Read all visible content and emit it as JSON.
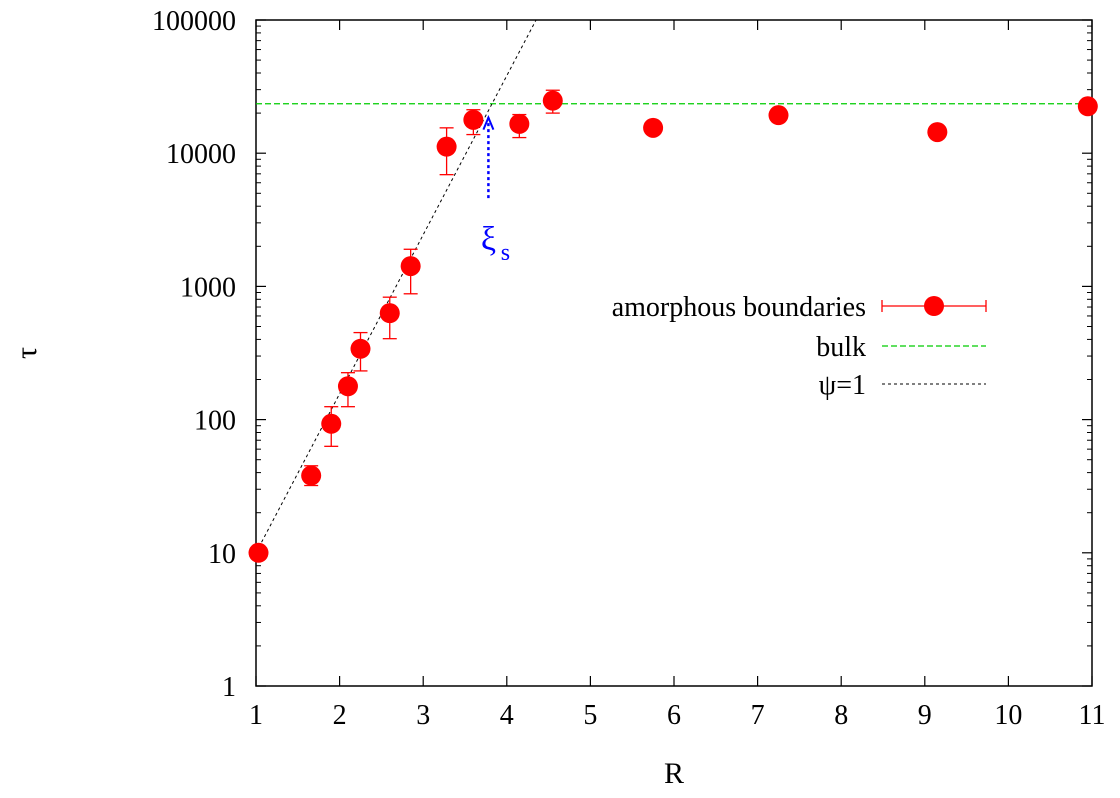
{
  "chart_data": {
    "type": "scatter",
    "xlabel": "R",
    "ylabel": "τ",
    "xlim": [
      1,
      11
    ],
    "ylim": [
      1,
      100000
    ],
    "yscale": "log",
    "grid": false,
    "legend_position": "right-middle",
    "x_ticks": [
      "1",
      "2",
      "3",
      "4",
      "5",
      "6",
      "7",
      "8",
      "9",
      "10",
      "11"
    ],
    "y_ticks": [
      "1",
      "10",
      "100",
      "1000",
      "10000",
      "100000"
    ],
    "series": [
      {
        "name": "amorphous boundaries",
        "type": "scatter-errorbar",
        "color": "#ff0000",
        "points": [
          {
            "x": 1.03,
            "y": 10,
            "ylo": 10,
            "yhi": 10
          },
          {
            "x": 1.66,
            "y": 38,
            "ylo": 32,
            "yhi": 45
          },
          {
            "x": 1.9,
            "y": 93,
            "ylo": 63,
            "yhi": 125
          },
          {
            "x": 2.1,
            "y": 178,
            "ylo": 125,
            "yhi": 225
          },
          {
            "x": 2.25,
            "y": 340,
            "ylo": 232,
            "yhi": 450
          },
          {
            "x": 2.6,
            "y": 630,
            "ylo": 405,
            "yhi": 830
          },
          {
            "x": 2.85,
            "y": 1420,
            "ylo": 880,
            "yhi": 1900
          },
          {
            "x": 3.28,
            "y": 11200,
            "ylo": 6900,
            "yhi": 15500
          },
          {
            "x": 3.6,
            "y": 17800,
            "ylo": 13800,
            "yhi": 21200
          },
          {
            "x": 4.15,
            "y": 16600,
            "ylo": 13100,
            "yhi": 19500
          },
          {
            "x": 4.55,
            "y": 24800,
            "ylo": 20000,
            "yhi": 29700
          },
          {
            "x": 5.75,
            "y": 15500,
            "ylo": 15500,
            "yhi": 15500
          },
          {
            "x": 7.25,
            "y": 19300,
            "ylo": 19300,
            "yhi": 19300
          },
          {
            "x": 9.15,
            "y": 14400,
            "ylo": 14400,
            "yhi": 14400
          },
          {
            "x": 10.95,
            "y": 22500,
            "ylo": 22500,
            "yhi": 22500
          }
        ]
      },
      {
        "name": "bulk",
        "type": "hline",
        "color": "#00cc00",
        "y": 23500
      },
      {
        "name": "ψ=1",
        "type": "line",
        "color": "#000000",
        "points": [
          {
            "x": 1.0,
            "y": 10
          },
          {
            "x": 4.35,
            "y": 100000
          }
        ]
      }
    ],
    "annotations": [
      {
        "text": "ξ",
        "subscript": "s",
        "color": "#0000ff",
        "arrow_from": {
          "x": 3.78,
          "y": 4600
        },
        "arrow_to": {
          "x": 3.78,
          "y": 18500
        }
      }
    ]
  }
}
